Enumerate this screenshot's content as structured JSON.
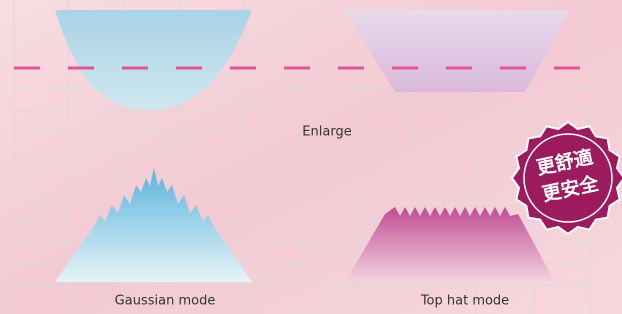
{
  "labels": {
    "center": "Enlarge",
    "left": "Gaussian mode",
    "right": "Top hat mode"
  },
  "badge": {
    "line1": "更舒適",
    "line2": "更安全"
  }
}
